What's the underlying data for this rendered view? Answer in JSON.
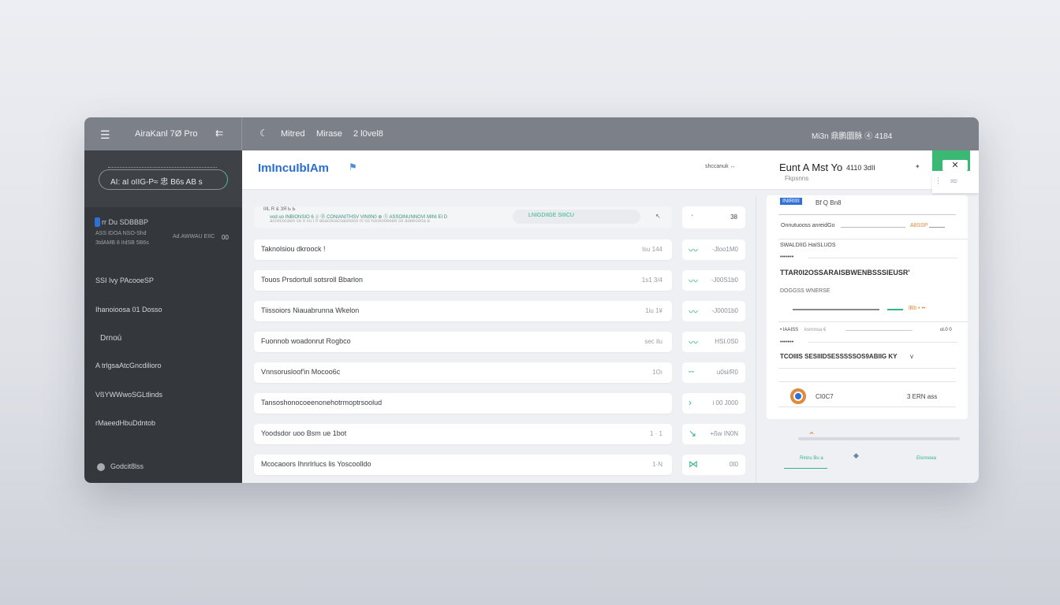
{
  "topbar": {
    "app_title": "AiraKanl 7Ø Pro",
    "nav": [
      "Mitred",
      "Mirase",
      "2 l0vel8"
    ],
    "right_text": "Mi3n 鼎鹏圜脉 ④ 4184"
  },
  "sidebar": {
    "search_pill": "AI: aI oIIG-P≈ 忠 B6s AB s",
    "section_label": "rr Du SDBBBP",
    "section_sub1": "ASS IDOA NSO-Shd",
    "section_sub2": "3tdAMB 8 IIdSB 5B6s",
    "section_right": "Ad.AWWAU EIIC",
    "section_count": "00",
    "items": [
      "SSI Ivy PAcooeSP",
      "Ihanoioosa 01 Dosso",
      "Drnoú",
      "A trlgsaAtcGncdilioro",
      "VßYWWwoSGLtlinds",
      "rMaeedHbuDdntob"
    ],
    "footer": "Godcit8lss"
  },
  "header": {
    "title": "ImIncuIbIAm",
    "status_text": "shccanuk ↔",
    "card_title": "Eunt A Mst Yo",
    "card_title_suffix": "4110 3dII",
    "card_subtitle": "Fkpsnns",
    "close_label": "✕"
  },
  "filter": {
    "line1": "IIIL R & ЗЯ Ь Ь",
    "line2": "vod uo INBIONSIO 6 ☉ ⓪ CONIANITHSV VIN0N0 ⊕ ⓢ ASSOINUNNOVI MINI EI D",
    "line3": "accecocaeo ce o vu i 0 aoacooacoaunooo rc co noceooeeee ce aoeeoooa a",
    "search_text": "LNIGDIIGE SIIICU",
    "box1": "↖",
    "box2_left": "ʻ",
    "box2_right": "38"
  },
  "rows": [
    {
      "label": "Taknolsiou dkroock !",
      "meta": "lsu 144",
      "trend": "up",
      "value": "-Jloo1M0"
    },
    {
      "label": "Touos Prsdortull sotsroll Bbarlon",
      "meta": "1s1 3/4",
      "trend": "down",
      "value": "-J00S1b0"
    },
    {
      "label": "Tiissoiors Niauabrunna Wkelon",
      "meta": "1iu 1¥",
      "trend": "up",
      "value": "-J0001b0"
    },
    {
      "label": "Fuonnob woadonrut Rogbco",
      "meta": "sec ilu",
      "trend": "down",
      "value": "HSI.0S0"
    },
    {
      "label": "Vnnsorusloof'in Mocoo6c",
      "meta": "1Oı",
      "trend": "flat",
      "value": "u0si/R0"
    },
    {
      "label": "Tansoshonocoeenonehotrmoptrsoolud",
      "meta": "",
      "trend": "chevron",
      "value": "i 00 J000"
    },
    {
      "label": "Yoodsdor uoo Bsm ue 1bot",
      "meta": "1 · 1",
      "trend": "arrow",
      "value": "+ßw IN0N"
    },
    {
      "label": "Mcocaoors Ihnrlrlucs lis Yoscoolldo",
      "meta": "1·N",
      "trend": "network",
      "value": "0I0"
    }
  ],
  "right_panel": {
    "tag": "INIRIIII",
    "tag_suffix": "Bf Q Bn8",
    "row1_left": "Onnutuooss anreidGo",
    "row1_badge": "A8SSP",
    "label1": "SWALDIIG HaISLUOS",
    "dots": "•••••••",
    "heading1": "TTAR0I2OSSARAISBWENBSSSIEUSR'",
    "label2": "DOGGSS WNERSE",
    "meter_text": "lBb • ••",
    "row2_left": "• IAAISS",
    "row2_mid": "ksnnnsa €",
    "row2_right": "ol.0 0",
    "heading2": "TCOIIIS SESIIIDSESSSSSOS9ABIIG KY",
    "heading2_suffix": "v",
    "avatar_name": "CI0C7",
    "avatar_meta": "3 ERN ass",
    "footer_left": "Rinnu Bu a",
    "footer_right": "Elsnnoea"
  },
  "colors": {
    "accent_blue": "#2a6fd0",
    "accent_green": "#2fb587",
    "accent_orange": "#e08a3c",
    "sidebar": "#34373c",
    "topbar": "#7c8189"
  }
}
